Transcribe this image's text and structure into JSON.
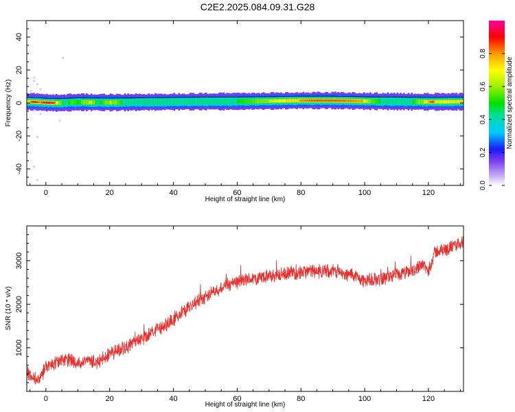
{
  "title": "C2E2.2025.084.09.31.G28",
  "chart_data": [
    {
      "type": "heatmap",
      "xlabel": "Height of straight line (km)",
      "ylabel": "Frequency (Hz)",
      "xlim": [
        -6,
        131
      ],
      "ylim": [
        -50,
        50
      ],
      "x_ticks": [
        0,
        20,
        40,
        60,
        80,
        100,
        120
      ],
      "y_ticks": [
        -40,
        -20,
        0,
        20,
        40
      ],
      "colorbar": {
        "label": "Normalized spectral amplitude",
        "range": [
          0,
          1
        ],
        "ticks": [
          "0.0",
          "0.2",
          "0.4",
          "0.6",
          "0.8"
        ]
      },
      "doppler_line": [
        [
          -6,
          0.8
        ],
        [
          -2,
          0.5
        ],
        [
          0,
          0.2
        ],
        [
          4,
          0.0
        ],
        [
          10,
          0.5
        ],
        [
          20,
          0.3
        ],
        [
          30,
          0.5
        ],
        [
          40,
          0.7
        ],
        [
          50,
          0.9
        ],
        [
          60,
          1.0
        ],
        [
          70,
          1.2
        ],
        [
          80,
          1.5
        ],
        [
          90,
          1.5
        ],
        [
          100,
          1.1
        ],
        [
          110,
          0.9
        ],
        [
          120,
          0.7
        ],
        [
          131,
          0.8
        ]
      ],
      "peak_amplitude": [
        [
          -6,
          0.7
        ],
        [
          -4,
          0.95
        ],
        [
          -2,
          0.8
        ],
        [
          0,
          1.0
        ],
        [
          2,
          0.95
        ],
        [
          4,
          0.6
        ],
        [
          6,
          0.45
        ],
        [
          8,
          0.55
        ],
        [
          10,
          0.5
        ],
        [
          12,
          0.6
        ],
        [
          14,
          0.7
        ],
        [
          16,
          0.45
        ],
        [
          20,
          0.65
        ],
        [
          25,
          0.45
        ],
        [
          30,
          0.45
        ],
        [
          40,
          0.45
        ],
        [
          50,
          0.48
        ],
        [
          60,
          0.5
        ],
        [
          65,
          0.55
        ],
        [
          70,
          0.65
        ],
        [
          75,
          0.72
        ],
        [
          80,
          0.82
        ],
        [
          85,
          0.85
        ],
        [
          90,
          0.85
        ],
        [
          95,
          0.83
        ],
        [
          99,
          0.8
        ],
        [
          102,
          0.55
        ],
        [
          106,
          0.48
        ],
        [
          110,
          0.48
        ],
        [
          115,
          0.5
        ],
        [
          119,
          0.7
        ],
        [
          121,
          0.9
        ],
        [
          123,
          0.65
        ],
        [
          126,
          0.72
        ],
        [
          131,
          0.75
        ]
      ]
    },
    {
      "type": "line",
      "xlabel": "Height of straight line (km)",
      "ylabel": "SNR (10 * v/v)",
      "xlim": [
        -6,
        131
      ],
      "ylim": [
        0,
        3800
      ],
      "x_ticks": [
        0,
        20,
        40,
        60,
        80,
        100,
        120
      ],
      "y_ticks": [
        1000,
        2000,
        3000
      ],
      "series": [
        {
          "color": "#e8312f",
          "x": [
            -6,
            -4,
            -2,
            0,
            2,
            4,
            6,
            8,
            10,
            12,
            14,
            16,
            18,
            20,
            24,
            28,
            32,
            36,
            40,
            44,
            48,
            52,
            56,
            60,
            64,
            68,
            72,
            76,
            80,
            84,
            88,
            92,
            94,
            96,
            98,
            100,
            104,
            108,
            112,
            116,
            118,
            120,
            122,
            124,
            128,
            131
          ],
          "y": [
            450,
            320,
            280,
            550,
            620,
            680,
            750,
            700,
            650,
            680,
            700,
            650,
            780,
            870,
            980,
            1120,
            1300,
            1460,
            1650,
            1870,
            2080,
            2280,
            2420,
            2520,
            2580,
            2620,
            2660,
            2700,
            2740,
            2760,
            2760,
            2770,
            2650,
            2700,
            2600,
            2550,
            2570,
            2640,
            2700,
            2800,
            2950,
            2750,
            3200,
            3230,
            3330,
            3450
          ],
          "noise_amplitude": 180
        }
      ]
    }
  ]
}
